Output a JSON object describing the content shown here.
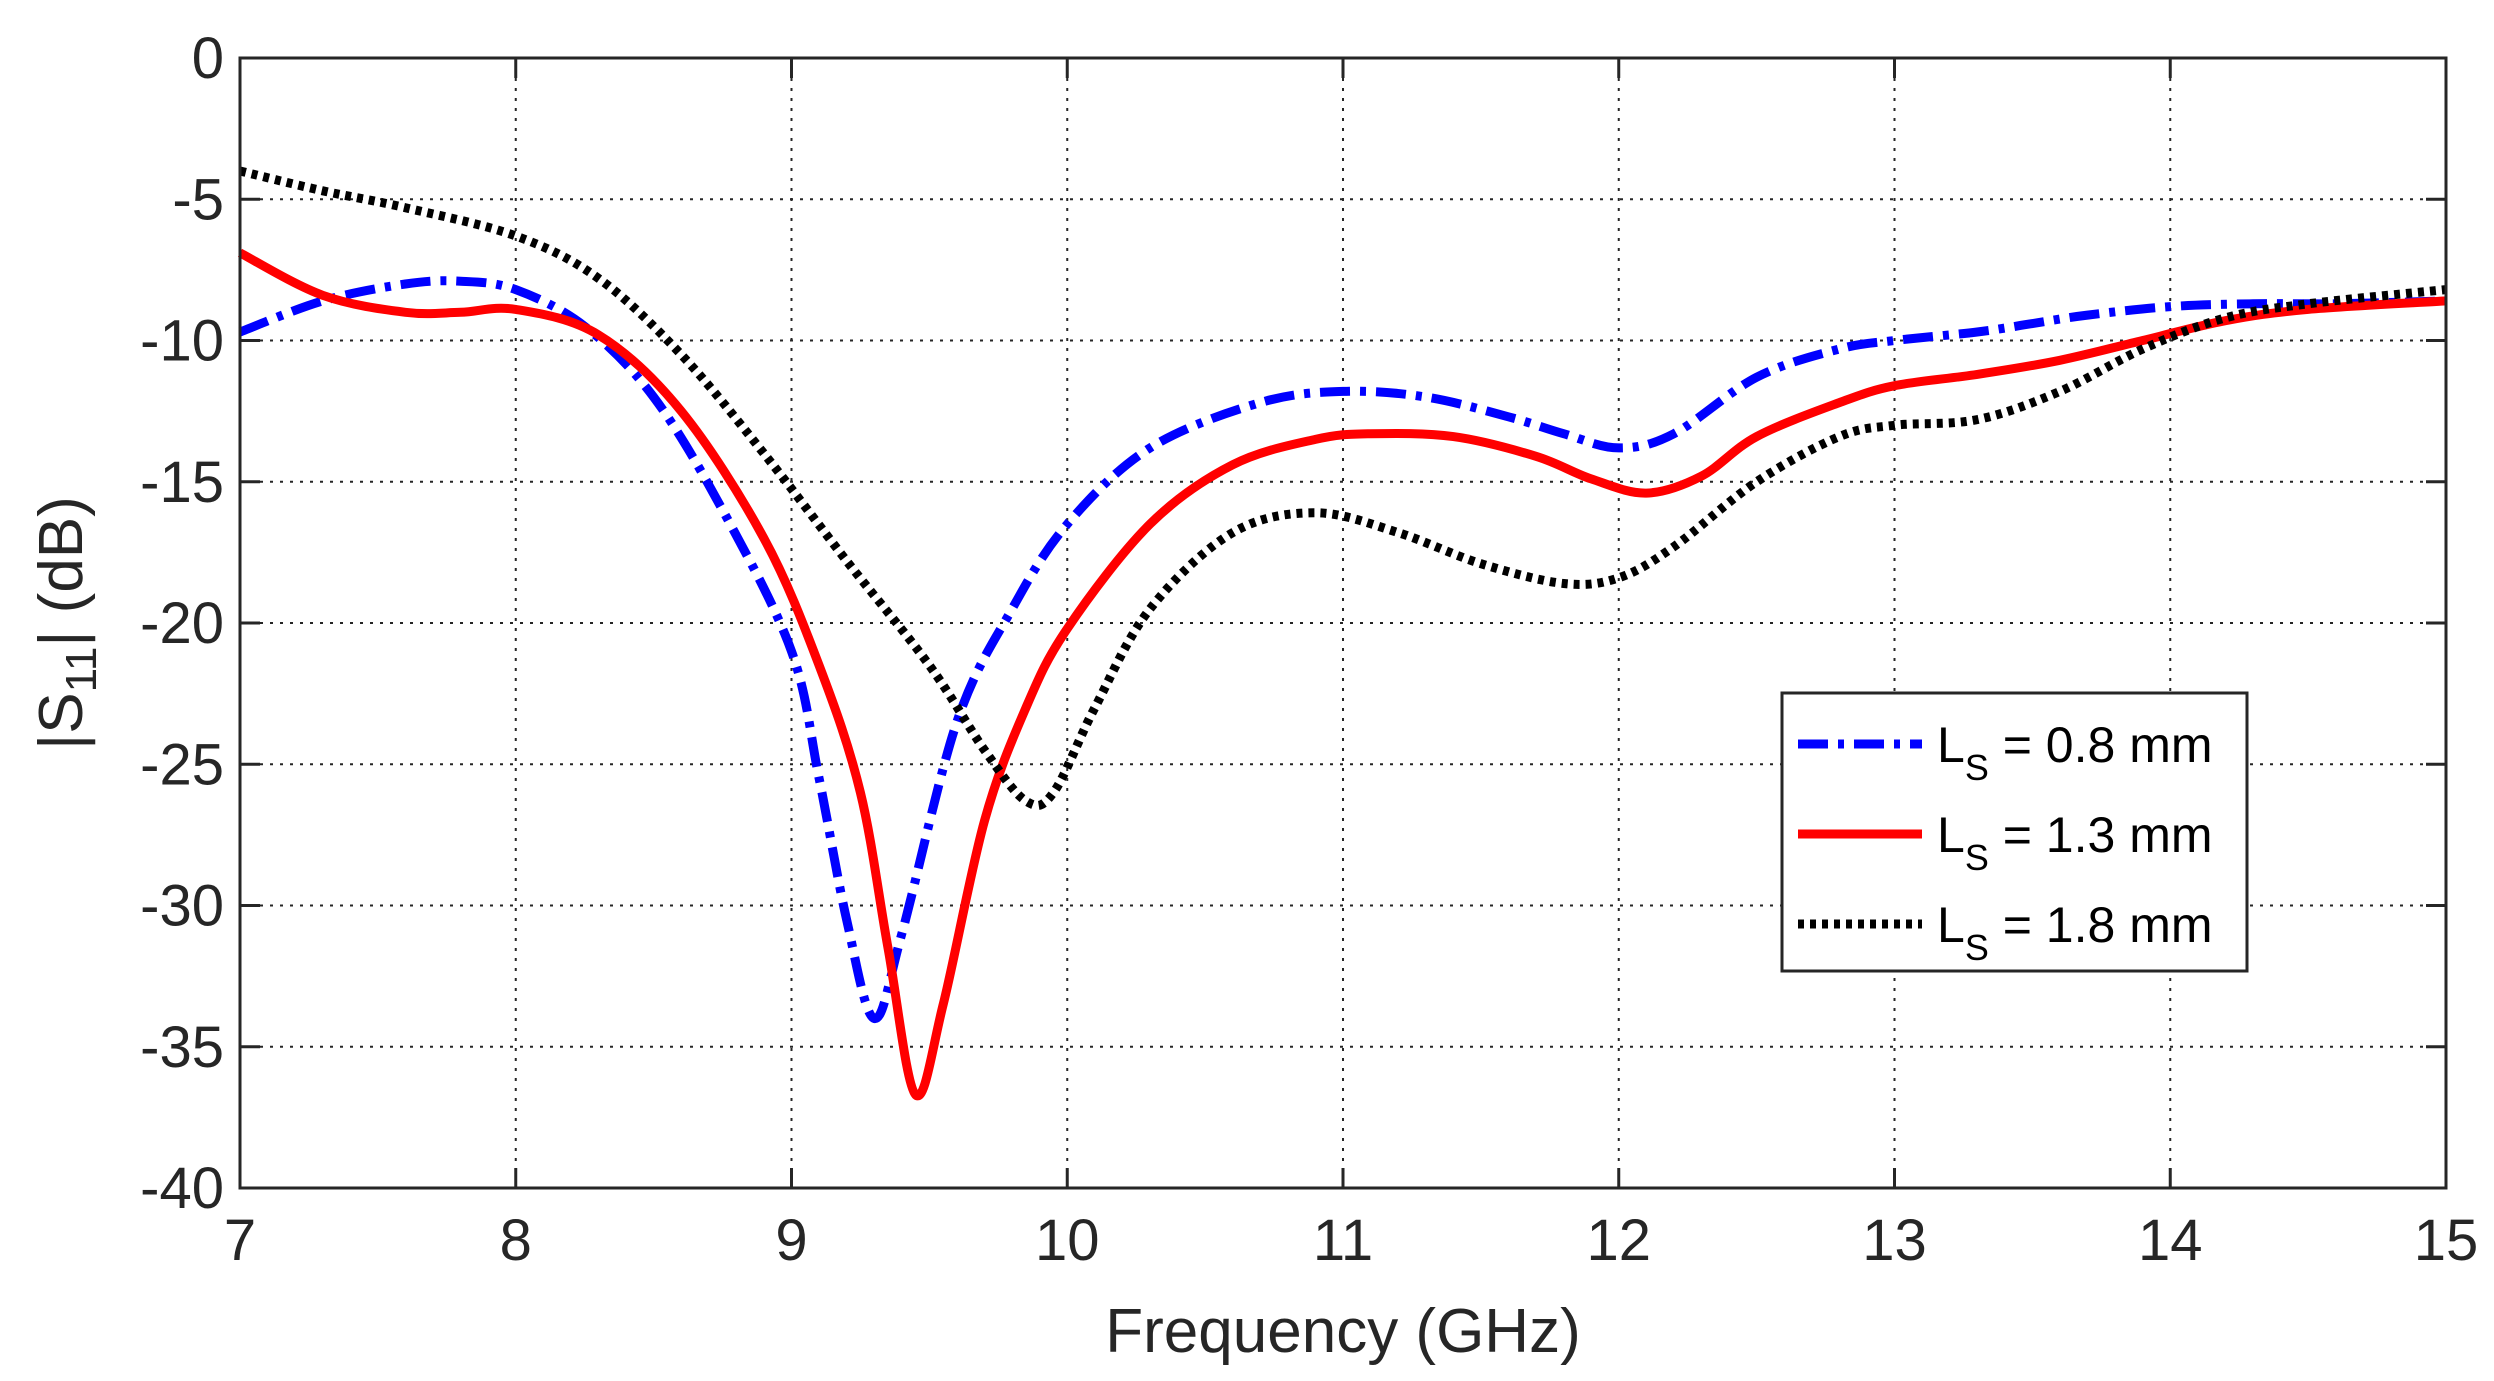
{
  "chart_data": {
    "type": "line",
    "xlabel": "Frequency (GHz)",
    "ylabel": {
      "prefix": "|S",
      "subscript": "11",
      "suffix": "| (dB)"
    },
    "xlim": [
      7,
      15
    ],
    "ylim": [
      -40,
      0
    ],
    "xticks": [
      7,
      8,
      9,
      10,
      11,
      12,
      13,
      14,
      15
    ],
    "yticks": [
      0,
      -5,
      -10,
      -15,
      -20,
      -25,
      -30,
      -35,
      -40
    ],
    "grid": true,
    "legend_position": "right",
    "series": [
      {
        "name": {
          "main": "L",
          "sub": "S",
          "rest": " = 0.8 mm"
        },
        "color": "#0000ff",
        "style": "dashdot",
        "x": [
          7.0,
          7.3,
          7.6,
          7.8,
          8.0,
          8.25,
          8.5,
          8.75,
          9.0,
          9.1,
          9.2,
          9.3,
          9.4,
          9.6,
          9.8,
          10.0,
          10.3,
          10.7,
          11.0,
          11.3,
          11.6,
          11.8,
          12.0,
          12.2,
          12.5,
          12.8,
          13.0,
          13.3,
          13.5,
          13.7,
          14.0,
          14.3,
          14.6,
          15.0
        ],
        "y": [
          -9.7,
          -8.6,
          -8.0,
          -7.9,
          -8.2,
          -9.5,
          -12.0,
          -16.0,
          -21.0,
          -25.5,
          -30.5,
          -34.0,
          -31.0,
          -23.5,
          -19.5,
          -16.5,
          -13.8,
          -12.2,
          -11.8,
          -12.0,
          -12.7,
          -13.3,
          -13.8,
          -13.3,
          -11.3,
          -10.3,
          -10.0,
          -9.7,
          -9.4,
          -9.1,
          -8.8,
          -8.7,
          -8.7,
          -8.6
        ]
      },
      {
        "name": {
          "main": "L",
          "sub": "S",
          "rest": " = 1.3 mm"
        },
        "color": "#ff0000",
        "style": "solid",
        "x": [
          7.0,
          7.3,
          7.6,
          7.8,
          8.0,
          8.3,
          8.6,
          8.9,
          9.1,
          9.25,
          9.35,
          9.45,
          9.55,
          9.7,
          9.85,
          10.0,
          10.3,
          10.6,
          10.9,
          11.1,
          11.4,
          11.7,
          11.9,
          12.1,
          12.3,
          12.5,
          12.8,
          13.0,
          13.3,
          13.6,
          13.9,
          14.2,
          14.5,
          15.0
        ],
        "y": [
          -6.9,
          -8.4,
          -9.0,
          -9.0,
          -8.9,
          -9.8,
          -12.5,
          -17.0,
          -21.5,
          -26.0,
          -31.5,
          -36.7,
          -33.5,
          -27.0,
          -23.0,
          -20.2,
          -16.5,
          -14.4,
          -13.5,
          -13.3,
          -13.4,
          -14.1,
          -14.9,
          -15.4,
          -14.8,
          -13.4,
          -12.2,
          -11.6,
          -11.2,
          -10.7,
          -10.0,
          -9.3,
          -8.9,
          -8.6
        ]
      },
      {
        "name": {
          "main": "L",
          "sub": "S",
          "rest": " = 1.8 mm"
        },
        "color": "#000000",
        "style": "dotted",
        "x": [
          7.0,
          7.3,
          7.6,
          8.0,
          8.3,
          8.6,
          8.9,
          9.2,
          9.5,
          9.7,
          9.85,
          9.95,
          10.1,
          10.3,
          10.6,
          10.9,
          11.2,
          11.5,
          11.8,
          12.0,
          12.2,
          12.5,
          12.8,
          13.0,
          13.3,
          13.6,
          13.9,
          14.2,
          14.5,
          15.0
        ],
        "y": [
          -4.0,
          -4.7,
          -5.3,
          -6.3,
          -7.8,
          -10.5,
          -14.0,
          -17.8,
          -21.5,
          -24.5,
          -26.3,
          -26.0,
          -23.0,
          -19.5,
          -16.8,
          -16.1,
          -16.8,
          -17.9,
          -18.6,
          -18.4,
          -17.3,
          -15.0,
          -13.4,
          -13.0,
          -12.8,
          -11.8,
          -10.3,
          -9.2,
          -8.7,
          -8.2
        ]
      }
    ]
  }
}
